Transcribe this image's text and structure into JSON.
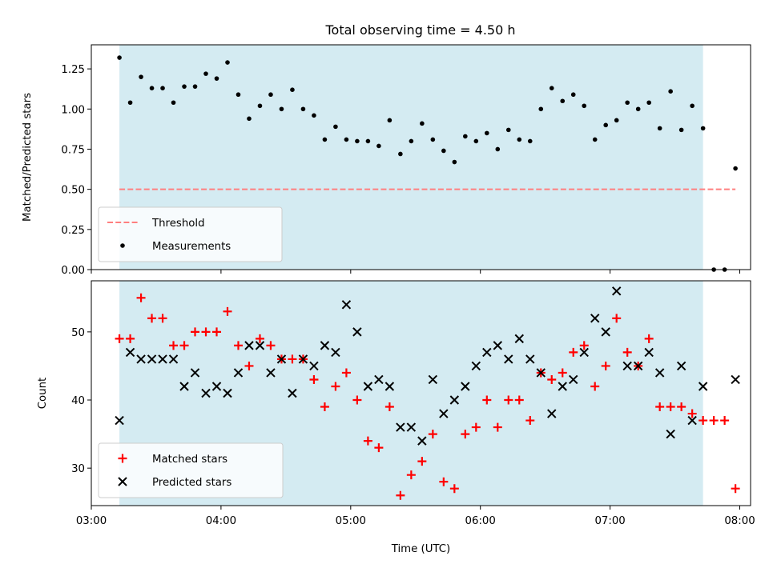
{
  "chart_data": [
    {
      "type": "scatter",
      "title": "Total observing time = 4.50 h",
      "ylabel": "Matched/Predicted stars",
      "xlabel": "",
      "xlim": [
        "03:00",
        "08:05"
      ],
      "ylim": [
        0,
        1.4
      ],
      "y_ticks": [
        "0.00",
        "0.25",
        "0.50",
        "0.75",
        "1.00",
        "1.25"
      ],
      "shaded_span": {
        "start": "03:13",
        "end": "07:43",
        "color": "#add8e6"
      },
      "threshold": {
        "name": "Threshold",
        "value": 0.5,
        "from": "03:13",
        "to": "07:58",
        "color": "#ff7f7f"
      },
      "series": [
        {
          "name": "Measurements",
          "marker": "dot",
          "color": "#000000",
          "points": [
            [
              "03:13",
              1.32
            ],
            [
              "03:18",
              1.04
            ],
            [
              "03:23",
              1.2
            ],
            [
              "03:28",
              1.13
            ],
            [
              "03:33",
              1.13
            ],
            [
              "03:38",
              1.04
            ],
            [
              "03:43",
              1.14
            ],
            [
              "03:48",
              1.14
            ],
            [
              "03:53",
              1.22
            ],
            [
              "03:58",
              1.19
            ],
            [
              "04:03",
              1.29
            ],
            [
              "04:08",
              1.09
            ],
            [
              "04:13",
              0.94
            ],
            [
              "04:18",
              1.02
            ],
            [
              "04:23",
              1.09
            ],
            [
              "04:28",
              1.0
            ],
            [
              "04:33",
              1.12
            ],
            [
              "04:38",
              1.0
            ],
            [
              "04:43",
              0.96
            ],
            [
              "04:48",
              0.81
            ],
            [
              "04:53",
              0.89
            ],
            [
              "04:58",
              0.81
            ],
            [
              "05:03",
              0.8
            ],
            [
              "05:08",
              0.8
            ],
            [
              "05:13",
              0.77
            ],
            [
              "05:18",
              0.93
            ],
            [
              "05:23",
              0.72
            ],
            [
              "05:28",
              0.8
            ],
            [
              "05:33",
              0.91
            ],
            [
              "05:38",
              0.81
            ],
            [
              "05:43",
              0.74
            ],
            [
              "05:48",
              0.67
            ],
            [
              "05:53",
              0.83
            ],
            [
              "05:58",
              0.8
            ],
            [
              "06:03",
              0.85
            ],
            [
              "06:08",
              0.75
            ],
            [
              "06:13",
              0.87
            ],
            [
              "06:18",
              0.81
            ],
            [
              "06:23",
              0.8
            ],
            [
              "06:28",
              1.0
            ],
            [
              "06:33",
              1.13
            ],
            [
              "06:38",
              1.05
            ],
            [
              "06:43",
              1.09
            ],
            [
              "06:48",
              1.02
            ],
            [
              "06:53",
              0.81
            ],
            [
              "06:58",
              0.9
            ],
            [
              "07:03",
              0.93
            ],
            [
              "07:08",
              1.04
            ],
            [
              "07:13",
              1.0
            ],
            [
              "07:18",
              1.04
            ],
            [
              "07:23",
              0.88
            ],
            [
              "07:28",
              1.11
            ],
            [
              "07:33",
              0.87
            ],
            [
              "07:38",
              1.02
            ],
            [
              "07:43",
              0.88
            ],
            [
              "07:48",
              0.0
            ],
            [
              "07:53",
              0.0
            ],
            [
              "07:58",
              0.63
            ]
          ]
        }
      ],
      "legend": {
        "position": "lower left",
        "entries": [
          "Threshold",
          "Measurements"
        ]
      }
    },
    {
      "type": "scatter",
      "title": "",
      "ylabel": "Count",
      "xlabel": "Time (UTC)",
      "xlim": [
        "03:00",
        "08:05"
      ],
      "ylim": [
        24.5,
        57.5
      ],
      "y_ticks": [
        "30",
        "40",
        "50"
      ],
      "x_ticks": [
        "03:00",
        "04:00",
        "05:00",
        "06:00",
        "07:00",
        "08:00"
      ],
      "shaded_span": {
        "start": "03:13",
        "end": "07:43",
        "color": "#add8e6"
      },
      "series": [
        {
          "name": "Matched stars",
          "marker": "plus",
          "color": "#ff0000",
          "points": [
            [
              "03:13",
              49
            ],
            [
              "03:18",
              49
            ],
            [
              "03:23",
              55
            ],
            [
              "03:28",
              52
            ],
            [
              "03:33",
              52
            ],
            [
              "03:38",
              48
            ],
            [
              "03:43",
              48
            ],
            [
              "03:48",
              50
            ],
            [
              "03:53",
              50
            ],
            [
              "03:58",
              50
            ],
            [
              "04:03",
              53
            ],
            [
              "04:08",
              48
            ],
            [
              "04:13",
              45
            ],
            [
              "04:18",
              49
            ],
            [
              "04:23",
              48
            ],
            [
              "04:28",
              46
            ],
            [
              "04:33",
              46
            ],
            [
              "04:38",
              46
            ],
            [
              "04:43",
              43
            ],
            [
              "04:48",
              39
            ],
            [
              "04:53",
              42
            ],
            [
              "04:58",
              44
            ],
            [
              "05:03",
              40
            ],
            [
              "05:08",
              34
            ],
            [
              "05:13",
              33
            ],
            [
              "05:18",
              39
            ],
            [
              "05:23",
              26
            ],
            [
              "05:28",
              29
            ],
            [
              "05:33",
              31
            ],
            [
              "05:38",
              35
            ],
            [
              "05:43",
              28
            ],
            [
              "05:48",
              27
            ],
            [
              "05:53",
              35
            ],
            [
              "05:58",
              36
            ],
            [
              "06:03",
              40
            ],
            [
              "06:08",
              36
            ],
            [
              "06:13",
              40
            ],
            [
              "06:18",
              40
            ],
            [
              "06:23",
              37
            ],
            [
              "06:28",
              44
            ],
            [
              "06:33",
              43
            ],
            [
              "06:38",
              44
            ],
            [
              "06:43",
              47
            ],
            [
              "06:48",
              48
            ],
            [
              "06:53",
              42
            ],
            [
              "06:58",
              45
            ],
            [
              "07:03",
              52
            ],
            [
              "07:08",
              47
            ],
            [
              "07:13",
              45
            ],
            [
              "07:18",
              49
            ],
            [
              "07:23",
              39
            ],
            [
              "07:28",
              39
            ],
            [
              "07:33",
              39
            ],
            [
              "07:38",
              38
            ],
            [
              "07:43",
              37
            ],
            [
              "07:48",
              37
            ],
            [
              "07:53",
              37
            ],
            [
              "07:58",
              27
            ]
          ]
        },
        {
          "name": "Predicted stars",
          "marker": "x",
          "color": "#000000",
          "points": [
            [
              "03:13",
              37
            ],
            [
              "03:18",
              47
            ],
            [
              "03:23",
              46
            ],
            [
              "03:28",
              46
            ],
            [
              "03:33",
              46
            ],
            [
              "03:38",
              46
            ],
            [
              "03:43",
              42
            ],
            [
              "03:48",
              44
            ],
            [
              "03:53",
              41
            ],
            [
              "03:58",
              42
            ],
            [
              "04:03",
              41
            ],
            [
              "04:08",
              44
            ],
            [
              "04:13",
              48
            ],
            [
              "04:18",
              48
            ],
            [
              "04:23",
              44
            ],
            [
              "04:28",
              46
            ],
            [
              "04:33",
              41
            ],
            [
              "04:38",
              46
            ],
            [
              "04:43",
              45
            ],
            [
              "04:48",
              48
            ],
            [
              "04:53",
              47
            ],
            [
              "04:58",
              54
            ],
            [
              "05:03",
              50
            ],
            [
              "05:08",
              42
            ],
            [
              "05:13",
              43
            ],
            [
              "05:18",
              42
            ],
            [
              "05:23",
              36
            ],
            [
              "05:28",
              36
            ],
            [
              "05:33",
              34
            ],
            [
              "05:38",
              43
            ],
            [
              "05:43",
              38
            ],
            [
              "05:48",
              40
            ],
            [
              "05:53",
              42
            ],
            [
              "05:58",
              45
            ],
            [
              "06:03",
              47
            ],
            [
              "06:08",
              48
            ],
            [
              "06:13",
              46
            ],
            [
              "06:18",
              49
            ],
            [
              "06:23",
              46
            ],
            [
              "06:28",
              44
            ],
            [
              "06:33",
              38
            ],
            [
              "06:38",
              42
            ],
            [
              "06:43",
              43
            ],
            [
              "06:48",
              47
            ],
            [
              "06:53",
              52
            ],
            [
              "06:58",
              50
            ],
            [
              "07:03",
              56
            ],
            [
              "07:08",
              45
            ],
            [
              "07:13",
              45
            ],
            [
              "07:18",
              47
            ],
            [
              "07:23",
              44
            ],
            [
              "07:28",
              35
            ],
            [
              "07:33",
              45
            ],
            [
              "07:38",
              37
            ],
            [
              "07:43",
              42
            ],
            [
              "07:58",
              43
            ]
          ]
        }
      ],
      "legend": {
        "position": "lower left",
        "entries": [
          "Matched stars",
          "Predicted stars"
        ]
      }
    }
  ]
}
